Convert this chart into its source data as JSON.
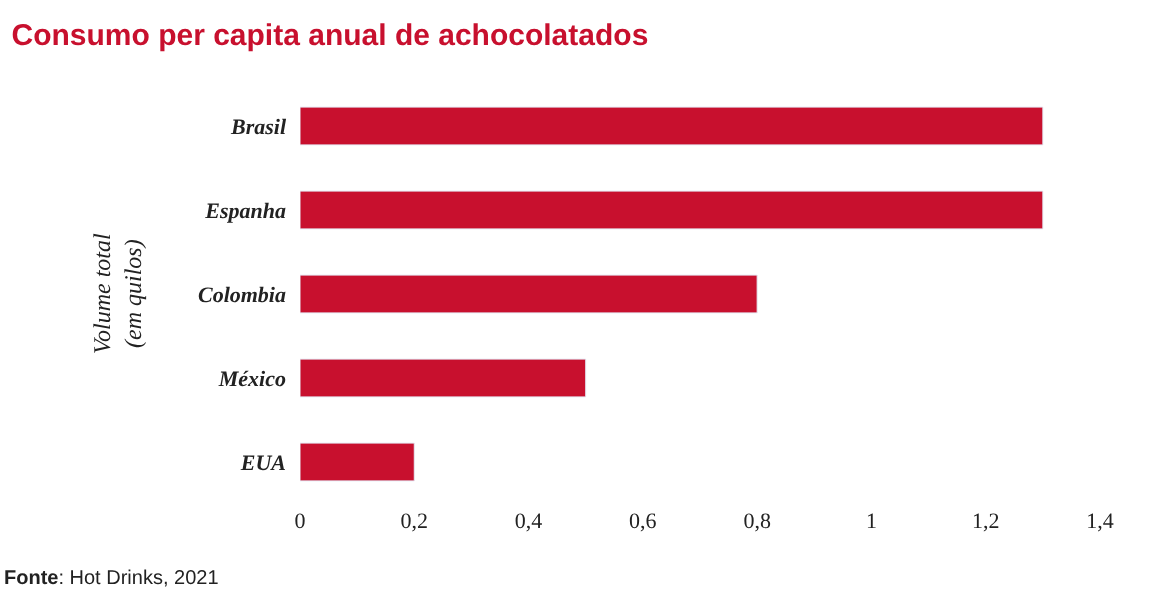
{
  "chart_data": {
    "type": "bar",
    "orientation": "horizontal",
    "title": "Consumo per capita anual de achocolatados",
    "ylabel": "Volume total\n(em quilos)",
    "categories": [
      "Brasil",
      "Espanha",
      "Colombia",
      "México",
      "EUA"
    ],
    "values": [
      1.3,
      1.3,
      0.8,
      0.5,
      0.2
    ],
    "color": "#c8102e",
    "xlim": [
      0,
      1.4
    ],
    "xticks": [
      0,
      {
        "value": 0.2,
        "label": "0,2"
      },
      {
        "value": 0.4,
        "label": "0,4"
      },
      {
        "value": 0.6,
        "label": "0,6"
      },
      {
        "value": 0.8,
        "label": "0,8"
      },
      1,
      {
        "value": 1.2,
        "label": "1,2"
      },
      {
        "value": 1.4,
        "label": "1,4"
      }
    ],
    "annotations": [
      "Fonte: Hot Drinks, 2021"
    ]
  }
}
